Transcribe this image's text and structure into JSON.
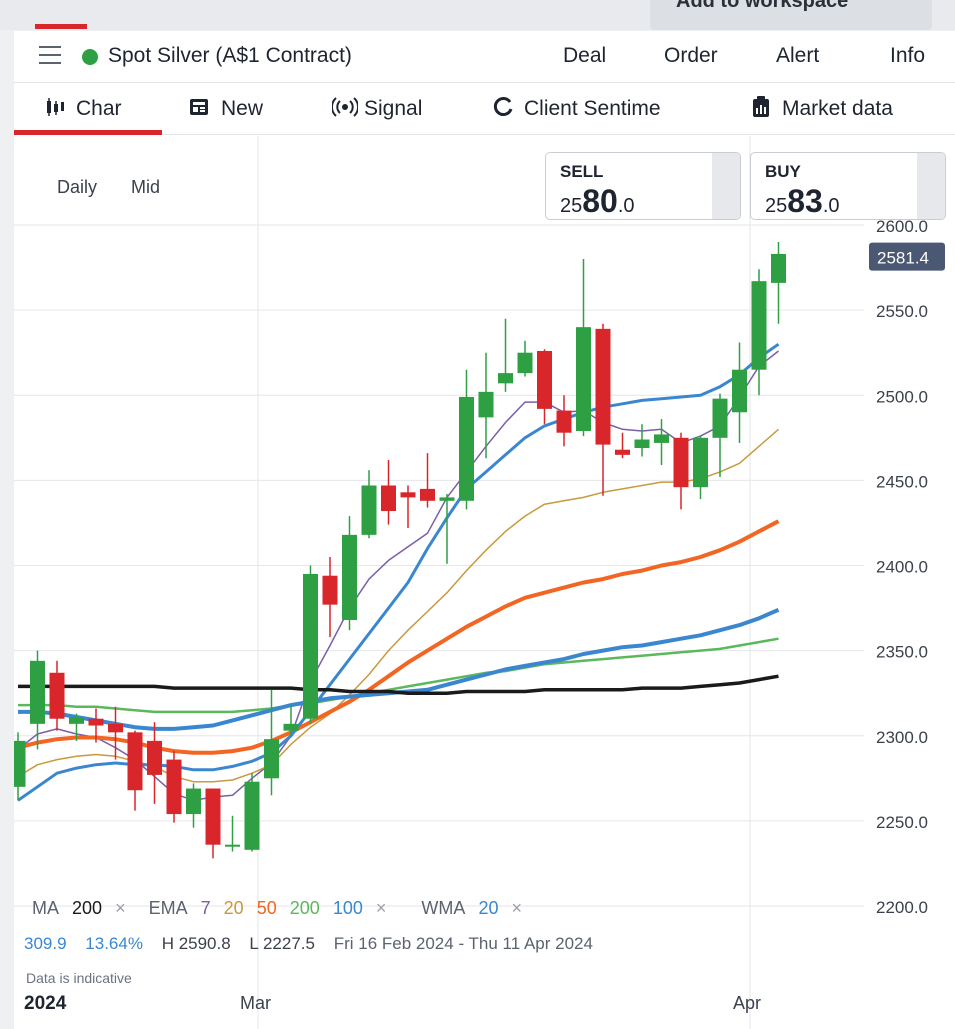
{
  "workspace_button": "Add to workspace",
  "header": {
    "title": "Spot Silver (A$1 Contract)",
    "status_color": "#2ea043",
    "actions": [
      "Deal",
      "Order",
      "Alert",
      "Info"
    ]
  },
  "tabs": [
    {
      "label": "Char",
      "icon": "candles-icon"
    },
    {
      "label": "New",
      "icon": "newspaper-icon"
    },
    {
      "label": "Signal",
      "icon": "signal-icon"
    },
    {
      "label": "Client Sentime",
      "icon": "sentiment-icon"
    },
    {
      "label": "Market data",
      "icon": "clipboard-icon"
    }
  ],
  "chart_controls": {
    "period": "Daily",
    "price_type": "Mid"
  },
  "quotes": {
    "sell": {
      "label": "SELL",
      "prefix": "25",
      "big": "80",
      "suffix": ".0"
    },
    "buy": {
      "label": "BUY",
      "prefix": "25",
      "big": "83",
      "suffix": ".0"
    }
  },
  "indicators": {
    "ma_label": "MA",
    "ma_period": "200",
    "ema_label": "EMA",
    "ema_periods": [
      "7",
      "20",
      "50",
      "200",
      "100"
    ],
    "wma_label": "WMA",
    "wma_period": "20",
    "close_symbol": "×"
  },
  "stats": {
    "change": "309.9",
    "change_pct": "13.64%",
    "high": "H 2590.8",
    "low": "L 2227.5",
    "range": "Fri 16 Feb 2024 - Thu 11 Apr 2024"
  },
  "disclaimer": "Data is indicative",
  "x_axis": {
    "year_label": "2024",
    "labels": [
      "Mar",
      "Apr"
    ]
  },
  "colors": {
    "up": "#2ea043",
    "down": "#d9262a",
    "ema7": "#7b5ea7",
    "ema20": "#c89a3c",
    "ema50": "#f26522",
    "ema200": "#5cb85c",
    "ema100": "#3a87d0",
    "wma20": "#3a87d0",
    "ma200": "#1a1a1a",
    "last_price_bg": "#4a5873"
  },
  "chart_data": {
    "type": "candlestick",
    "ylim": [
      2200,
      2600
    ],
    "y_ticks": [
      "2600.0",
      "2550.0",
      "2500.0",
      "2450.0",
      "2400.0",
      "2350.0",
      "2300.0",
      "2250.0",
      "2200.0"
    ],
    "last_price": "2581.4",
    "candles": [
      {
        "o": 2270,
        "h": 2302,
        "l": 2262,
        "c": 2297
      },
      {
        "o": 2307,
        "h": 2350,
        "l": 2292,
        "c": 2344
      },
      {
        "o": 2337,
        "h": 2344,
        "l": 2303,
        "c": 2310
      },
      {
        "o": 2307,
        "h": 2313,
        "l": 2297,
        "c": 2311
      },
      {
        "o": 2310,
        "h": 2316,
        "l": 2296,
        "c": 2306
      },
      {
        "o": 2307,
        "h": 2317,
        "l": 2286,
        "c": 2302
      },
      {
        "o": 2302,
        "h": 2303,
        "l": 2256,
        "c": 2268
      },
      {
        "o": 2297,
        "h": 2308,
        "l": 2260,
        "c": 2277
      },
      {
        "o": 2286,
        "h": 2291,
        "l": 2249,
        "c": 2254
      },
      {
        "o": 2254,
        "h": 2272,
        "l": 2246,
        "c": 2269
      },
      {
        "o": 2269,
        "h": 2269,
        "l": 2228,
        "c": 2236
      },
      {
        "o": 2235,
        "h": 2253,
        "l": 2232,
        "c": 2236
      },
      {
        "o": 2233,
        "h": 2278,
        "l": 2232,
        "c": 2273
      },
      {
        "o": 2275,
        "h": 2327,
        "l": 2265,
        "c": 2298
      },
      {
        "o": 2303,
        "h": 2318,
        "l": 2300,
        "c": 2307
      },
      {
        "o": 2310,
        "h": 2400,
        "l": 2307,
        "c": 2395
      },
      {
        "o": 2394,
        "h": 2405,
        "l": 2358,
        "c": 2377
      },
      {
        "o": 2368,
        "h": 2429,
        "l": 2362,
        "c": 2418
      },
      {
        "o": 2418,
        "h": 2456,
        "l": 2416,
        "c": 2447
      },
      {
        "o": 2447,
        "h": 2462,
        "l": 2424,
        "c": 2432
      },
      {
        "o": 2443,
        "h": 2447,
        "l": 2422,
        "c": 2440
      },
      {
        "o": 2445,
        "h": 2466,
        "l": 2434,
        "c": 2438
      },
      {
        "o": 2438,
        "h": 2442,
        "l": 2401,
        "c": 2440
      },
      {
        "o": 2438,
        "h": 2515,
        "l": 2433,
        "c": 2499
      },
      {
        "o": 2487,
        "h": 2525,
        "l": 2463,
        "c": 2502
      },
      {
        "o": 2507,
        "h": 2545,
        "l": 2502,
        "c": 2513
      },
      {
        "o": 2513,
        "h": 2532,
        "l": 2511,
        "c": 2525
      },
      {
        "o": 2526,
        "h": 2527,
        "l": 2483,
        "c": 2492
      },
      {
        "o": 2491,
        "h": 2500,
        "l": 2470,
        "c": 2478
      },
      {
        "o": 2479,
        "h": 2580,
        "l": 2476,
        "c": 2540
      },
      {
        "o": 2539,
        "h": 2542,
        "l": 2441,
        "c": 2471
      },
      {
        "o": 2468,
        "h": 2478,
        "l": 2463,
        "c": 2465
      },
      {
        "o": 2469,
        "h": 2483,
        "l": 2464,
        "c": 2474
      },
      {
        "o": 2472,
        "h": 2486,
        "l": 2459,
        "c": 2477
      },
      {
        "o": 2475,
        "h": 2478,
        "l": 2433,
        "c": 2446
      },
      {
        "o": 2446,
        "h": 2476,
        "l": 2439,
        "c": 2475
      },
      {
        "o": 2475,
        "h": 2501,
        "l": 2452,
        "c": 2498
      },
      {
        "o": 2490,
        "h": 2531,
        "l": 2472,
        "c": 2515
      },
      {
        "o": 2515,
        "h": 2574,
        "l": 2500,
        "c": 2567
      },
      {
        "o": 2566,
        "h": 2590,
        "l": 2542,
        "c": 2583
      }
    ],
    "series": [
      {
        "name": "EMA 7",
        "values": [
          2292,
          2301,
          2304,
          2301,
          2299,
          2293,
          2286,
          2276,
          2266,
          2262,
          2264,
          2265,
          2275,
          2284,
          2300,
          2332,
          2353,
          2375,
          2392,
          2403,
          2411,
          2419,
          2440,
          2455,
          2470,
          2484,
          2496,
          2496,
          2490,
          2491,
          2484,
          2480,
          2479,
          2480,
          2472,
          2476,
          2482,
          2499,
          2517,
          2526
        ]
      },
      {
        "name": "EMA 20",
        "values": [
          2276,
          2283,
          2286,
          2288,
          2289,
          2288,
          2285,
          2282,
          2276,
          2273,
          2273,
          2274,
          2278,
          2283,
          2295,
          2305,
          2313,
          2324,
          2336,
          2350,
          2362,
          2373,
          2384,
          2397,
          2409,
          2420,
          2429,
          2436,
          2438,
          2440,
          2443,
          2445,
          2447,
          2449,
          2449,
          2451,
          2455,
          2460,
          2470,
          2480
        ]
      },
      {
        "name": "EMA 50",
        "values": [
          2293,
          2296,
          2298,
          2299,
          2299,
          2298,
          2296,
          2293,
          2291,
          2290,
          2290,
          2291,
          2293,
          2297,
          2302,
          2308,
          2314,
          2320,
          2327,
          2335,
          2343,
          2350,
          2357,
          2364,
          2370,
          2376,
          2381,
          2384,
          2387,
          2390,
          2392,
          2395,
          2397,
          2400,
          2402,
          2405,
          2409,
          2414,
          2420,
          2426
        ]
      },
      {
        "name": "EMA 200",
        "values": [
          2318,
          2318,
          2318,
          2317,
          2317,
          2316,
          2315,
          2314,
          2314,
          2314,
          2314,
          2314,
          2315,
          2316,
          2318,
          2319,
          2321,
          2323,
          2325,
          2327,
          2329,
          2331,
          2333,
          2335,
          2337,
          2338,
          2340,
          2342,
          2343,
          2344,
          2345,
          2346,
          2347,
          2348,
          2349,
          2350,
          2351,
          2353,
          2355,
          2357
        ]
      },
      {
        "name": "EMA 100",
        "values": [
          2262,
          2270,
          2278,
          2281,
          2283,
          2284,
          2283,
          2283,
          2282,
          2280,
          2280,
          2282,
          2285,
          2290,
          2300,
          2315,
          2330,
          2345,
          2360,
          2375,
          2390,
          2410,
          2428,
          2445,
          2455,
          2465,
          2475,
          2482,
          2486,
          2490,
          2493,
          2495,
          2497,
          2498,
          2499,
          2500,
          2505,
          2512,
          2522,
          2530
        ]
      },
      {
        "name": "WMA 20",
        "values": [
          2314,
          2314,
          2313,
          2311,
          2309,
          2307,
          2305,
          2304,
          2304,
          2305,
          2306,
          2309,
          2312,
          2315,
          2318,
          2320,
          2322,
          2323,
          2324,
          2325,
          2326,
          2327,
          2330,
          2333,
          2336,
          2339,
          2341,
          2343,
          2345,
          2348,
          2350,
          2352,
          2353,
          2355,
          2357,
          2359,
          2362,
          2365,
          2369,
          2374
        ]
      },
      {
        "name": "MA 200",
        "values": [
          2329,
          2329,
          2329,
          2329,
          2329,
          2329,
          2329,
          2329,
          2328,
          2328,
          2328,
          2328,
          2328,
          2328,
          2328,
          2327,
          2327,
          2326,
          2326,
          2326,
          2325,
          2325,
          2325,
          2326,
          2326,
          2326,
          2326,
          2327,
          2327,
          2327,
          2327,
          2327,
          2328,
          2328,
          2328,
          2329,
          2330,
          2331,
          2333,
          2335
        ]
      }
    ]
  }
}
